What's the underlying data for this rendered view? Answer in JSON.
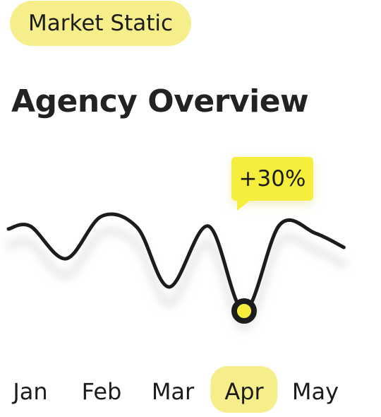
{
  "badge": {
    "label": "Market Static"
  },
  "header": {
    "title": "Agency Overview"
  },
  "colors": {
    "badge_bg": "#f6ee8a",
    "tooltip_bg": "#f6ee3c",
    "line": "#1c1c1c",
    "marker_fill": "#f6ee3c"
  },
  "chart_data": {
    "type": "line",
    "title": "Agency Overview",
    "xlabel": "",
    "ylabel": "",
    "categories": [
      "Jan",
      "Feb",
      "Mar",
      "Apr",
      "May"
    ],
    "highlighted_category": "Apr",
    "grid": false,
    "legend": "none",
    "ylim": [
      0,
      100
    ],
    "series": [
      {
        "name": "Agency",
        "x": [
          0,
          0.5,
          1,
          1.5,
          1.95,
          2.5,
          3,
          3.5,
          4,
          4.4
        ],
        "values": [
          60,
          37,
          67,
          59,
          17,
          60,
          0,
          61,
          55,
          45
        ]
      }
    ],
    "annotations": [
      {
        "category": "Apr",
        "x": 3,
        "label": "+30%"
      }
    ]
  }
}
